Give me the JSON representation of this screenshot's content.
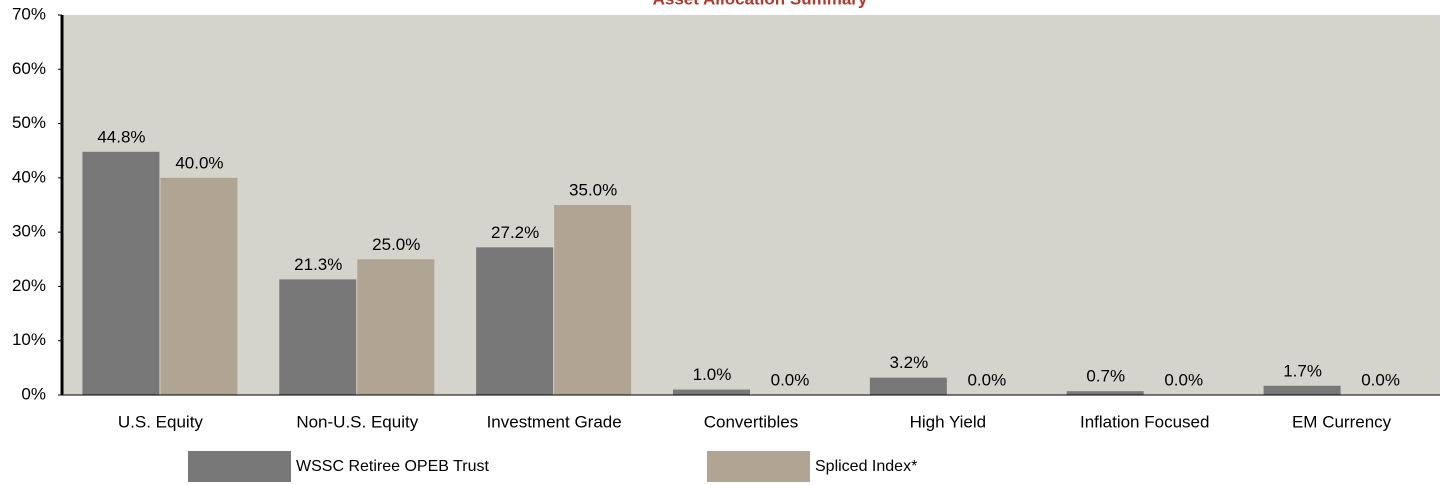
{
  "chart_data": {
    "type": "bar",
    "title": "Asset Allocation Summary",
    "categories": [
      "U.S. Equity",
      "Non-U.S. Equity",
      "Investment Grade",
      "Convertibles",
      "High Yield",
      "Inflation Focused",
      "EM Currency"
    ],
    "series": [
      {
        "name": "WSSC Retiree OPEB Trust",
        "color": "#787878",
        "values": [
          44.8,
          21.3,
          27.2,
          1.0,
          3.2,
          0.7,
          1.7
        ],
        "value_labels": [
          "44.8%",
          "21.3%",
          "27.2%",
          "1.0%",
          "3.2%",
          "0.7%",
          "1.7%"
        ]
      },
      {
        "name": "Spliced Index*",
        "color": "#b0a493",
        "values": [
          40.0,
          25.0,
          35.0,
          0.0,
          0.0,
          0.0,
          0.0
        ],
        "value_labels": [
          "40.0%",
          "25.0%",
          "35.0%",
          "0.0%",
          "0.0%",
          "0.0%",
          "0.0%"
        ]
      }
    ],
    "ylim": [
      0,
      70
    ],
    "yticks": [
      {
        "value": 0,
        "label": "0%"
      },
      {
        "value": 10,
        "label": "10%"
      },
      {
        "value": 20,
        "label": "20%"
      },
      {
        "value": 30,
        "label": "30%"
      },
      {
        "value": 40,
        "label": "40%"
      },
      {
        "value": 50,
        "label": "50%"
      },
      {
        "value": 60,
        "label": "60%"
      },
      {
        "value": 70,
        "label": "70%"
      }
    ],
    "legend": "bottom",
    "plot_background": "#d4d3cc",
    "title_color": "#b03a2e"
  }
}
